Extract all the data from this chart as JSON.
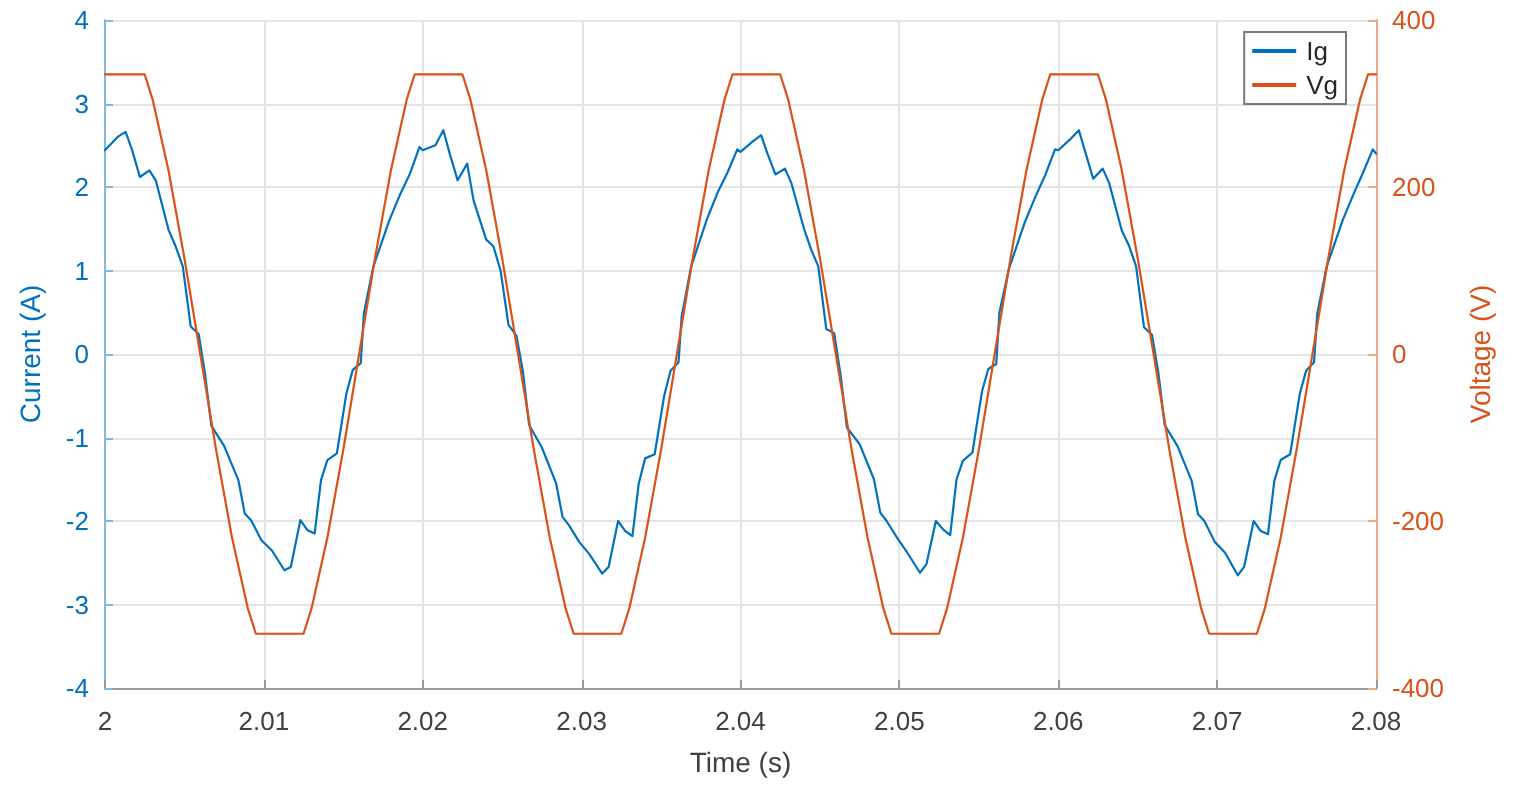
{
  "chart_data": {
    "type": "line",
    "xlabel": "Time (s)",
    "ylabel": "Current (A)",
    "y2label": "Voltage (V)",
    "xlim": [
      2,
      2.08
    ],
    "xticks": [
      2,
      2.01,
      2.02,
      2.03,
      2.04,
      2.05,
      2.06,
      2.07,
      2.08
    ],
    "ylim": [
      -4,
      4
    ],
    "yticks": [
      -4,
      -3,
      -2,
      -1,
      0,
      1,
      2,
      3,
      4
    ],
    "y2lim": [
      -400,
      400
    ],
    "y2ticks": [
      -400,
      -200,
      0,
      200,
      400
    ],
    "grid": true,
    "legend": "top right",
    "marker": "none",
    "line_style": "solid",
    "series": [
      {
        "name": "Ig",
        "color": "#0072bd",
        "x": [
          2,
          2.0008,
          2.0013,
          2.0017,
          2.0022,
          2.0028,
          2.0032,
          2.004,
          2.00445,
          2.0049,
          2.0054,
          2.0059,
          2.0063,
          2.0067,
          2.0075,
          2.0084,
          2.0088,
          2.0092,
          2.00985,
          2.0105,
          2.0113,
          2.0117,
          2.0123,
          2.01275,
          2.0132,
          2.0136,
          2.014,
          2.0146,
          2.0152,
          2.0156,
          2.0161,
          2.0163,
          2.0169,
          2.0179,
          2.0186,
          2.0192,
          2.0198,
          2.02,
          2.0208,
          2.0213,
          2.0217,
          2.0222,
          2.0228,
          2.0232,
          2.024,
          2.02445,
          2.0249,
          2.0254,
          2.0259,
          2.0263,
          2.0267,
          2.0275,
          2.0284,
          2.0288,
          2.0292,
          2.02985,
          2.0305,
          2.0313,
          2.0317,
          2.0323,
          2.03275,
          2.0332,
          2.0336,
          2.034,
          2.0346,
          2.0352,
          2.0356,
          2.0361,
          2.0363,
          2.0369,
          2.0379,
          2.0386,
          2.0392,
          2.0398,
          2.04,
          2.0408,
          2.0413,
          2.0417,
          2.0422,
          2.0428,
          2.0432,
          2.044,
          2.04445,
          2.0449,
          2.0454,
          2.0459,
          2.0463,
          2.0467,
          2.0475,
          2.0484,
          2.0488,
          2.0492,
          2.04985,
          2.0505,
          2.0513,
          2.0517,
          2.0523,
          2.05275,
          2.0532,
          2.0536,
          2.054,
          2.0546,
          2.0552,
          2.0556,
          2.0561,
          2.0563,
          2.0569,
          2.0579,
          2.0586,
          2.0592,
          2.0598,
          2.06,
          2.0608,
          2.0613,
          2.0617,
          2.0622,
          2.0628,
          2.0632,
          2.064,
          2.06445,
          2.0649,
          2.0654,
          2.0659,
          2.0663,
          2.0667,
          2.0675,
          2.0684,
          2.0688,
          2.0692,
          2.06985,
          2.0705,
          2.0713,
          2.0717,
          2.0723,
          2.07275,
          2.0732,
          2.0736,
          2.074,
          2.0746,
          2.0752,
          2.0756,
          2.0761,
          2.0763,
          2.0769,
          2.0779,
          2.0786,
          2.0792,
          2.0798,
          2.08
        ],
        "values": [
          2.44,
          2.6,
          2.66,
          2.45,
          2.12,
          2.2,
          2.08,
          1.49,
          1.29,
          1.05,
          0.33,
          0.24,
          -0.24,
          -0.86,
          -1.1,
          -1.51,
          -1.91,
          -1.99,
          -2.23,
          -2.35,
          -2.59,
          -2.55,
          -1.99,
          -2.11,
          -2.15,
          -1.51,
          -1.27,
          -1.19,
          -0.47,
          -0.19,
          -0.11,
          0.49,
          1.05,
          1.6,
          1.92,
          2.16,
          2.48,
          2.44,
          2.5,
          2.68,
          2.4,
          2.08,
          2.28,
          1.84,
          1.37,
          1.29,
          1.0,
          0.35,
          0.22,
          -0.2,
          -0.85,
          -1.12,
          -1.55,
          -1.95,
          -2.05,
          -2.25,
          -2.4,
          -2.63,
          -2.55,
          -2.0,
          -2.12,
          -2.18,
          -1.55,
          -1.25,
          -1.2,
          -0.5,
          -0.2,
          -0.1,
          0.45,
          1.05,
          1.62,
          1.95,
          2.18,
          2.45,
          2.42,
          2.55,
          2.62,
          2.4,
          2.15,
          2.22,
          2.05,
          1.5,
          1.25,
          1.05,
          0.3,
          0.25,
          -0.25,
          -0.88,
          -1.08,
          -1.5,
          -1.9,
          -2.0,
          -2.2,
          -2.38,
          -2.62,
          -2.52,
          -2.0,
          -2.1,
          -2.17,
          -1.5,
          -1.28,
          -1.18,
          -0.45,
          -0.18,
          -0.12,
          0.5,
          1.02,
          1.58,
          1.9,
          2.15,
          2.45,
          2.44,
          2.58,
          2.68,
          2.42,
          2.1,
          2.22,
          2.05,
          1.48,
          1.3,
          1.05,
          0.32,
          0.23,
          -0.22,
          -0.85,
          -1.1,
          -1.52,
          -1.92,
          -2.0,
          -2.25,
          -2.38,
          -2.65,
          -2.55,
          -2.0,
          -2.12,
          -2.16,
          -1.52,
          -1.27,
          -1.2,
          -0.48,
          -0.2,
          -0.1,
          0.48,
          1.05,
          1.6,
          1.92,
          2.18,
          2.45,
          2.4
        ]
      },
      {
        "name": "Vg",
        "color": "#d95319",
        "axis": "y2",
        "x": [
          2,
          2.0025,
          2.003,
          2.004,
          2.005,
          2.006,
          2.007,
          2.008,
          2.009,
          2.0095,
          2.0125,
          2.013,
          2.014,
          2.015,
          2.016,
          2.017,
          2.018,
          2.019,
          2.0195,
          2.0225,
          2.023,
          2.024,
          2.025,
          2.026,
          2.027,
          2.028,
          2.029,
          2.0295,
          2.0325,
          2.033,
          2.034,
          2.035,
          2.036,
          2.037,
          2.038,
          2.039,
          2.0395,
          2.0425,
          2.043,
          2.044,
          2.045,
          2.046,
          2.047,
          2.048,
          2.049,
          2.0495,
          2.0525,
          2.053,
          2.054,
          2.055,
          2.056,
          2.057,
          2.058,
          2.059,
          2.0595,
          2.0625,
          2.063,
          2.064,
          2.065,
          2.066,
          2.067,
          2.068,
          2.069,
          2.0695,
          2.0725,
          2.073,
          2.074,
          2.075,
          2.076,
          2.077,
          2.078,
          2.079,
          2.0795,
          2.08
        ],
        "values": [
          335,
          335,
          305,
          220,
          115,
          0,
          -115,
          -220,
          -305,
          -335,
          -335,
          -305,
          -220,
          -115,
          0,
          115,
          220,
          305,
          335,
          335,
          305,
          220,
          115,
          0,
          -115,
          -220,
          -305,
          -335,
          -335,
          -305,
          -220,
          -115,
          0,
          115,
          220,
          305,
          335,
          335,
          305,
          220,
          115,
          0,
          -115,
          -220,
          -305,
          -335,
          -335,
          -305,
          -220,
          -115,
          0,
          115,
          220,
          305,
          335,
          335,
          305,
          220,
          115,
          0,
          -115,
          -220,
          -305,
          -335,
          -335,
          -305,
          -220,
          -115,
          0,
          115,
          220,
          305,
          335,
          335
        ]
      }
    ]
  }
}
